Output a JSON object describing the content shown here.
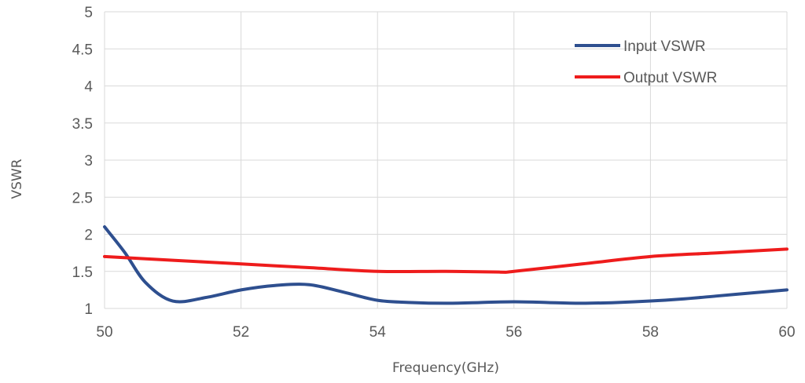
{
  "chart_data": {
    "type": "line",
    "title": "",
    "xlabel": "Frequency(GHz)",
    "ylabel": "VSWR",
    "xlim": [
      50,
      60
    ],
    "ylim": [
      1,
      5
    ],
    "xticks": [
      50,
      52,
      54,
      56,
      58,
      60
    ],
    "yticks": [
      1,
      1.5,
      2,
      2.5,
      3,
      3.5,
      4,
      4.5,
      5
    ],
    "ytick_labels": [
      "1",
      "1.5",
      "2",
      "2.5",
      "3",
      "3.5",
      "4",
      "4.5",
      "5"
    ],
    "grid": true,
    "legend_position": "top-right",
    "series": [
      {
        "name": "Input VSWR",
        "color": "#2e4f8f",
        "x": [
          50,
          50.3,
          50.6,
          51,
          51.5,
          52,
          52.5,
          53,
          53.5,
          54,
          54.5,
          55,
          55.5,
          56,
          56.5,
          57,
          57.5,
          58,
          58.5,
          59,
          59.5,
          60
        ],
        "y": [
          2.1,
          1.75,
          1.35,
          1.1,
          1.15,
          1.25,
          1.31,
          1.32,
          1.22,
          1.11,
          1.08,
          1.07,
          1.08,
          1.09,
          1.08,
          1.07,
          1.08,
          1.1,
          1.13,
          1.17,
          1.21,
          1.25
        ]
      },
      {
        "name": "Output VSWR",
        "color": "#ee1c1c",
        "x": [
          50,
          51,
          52,
          53,
          54,
          55,
          55.8,
          56,
          57,
          58,
          59,
          60
        ],
        "y": [
          1.7,
          1.65,
          1.6,
          1.55,
          1.5,
          1.5,
          1.49,
          1.5,
          1.6,
          1.7,
          1.75,
          1.8
        ]
      }
    ]
  }
}
